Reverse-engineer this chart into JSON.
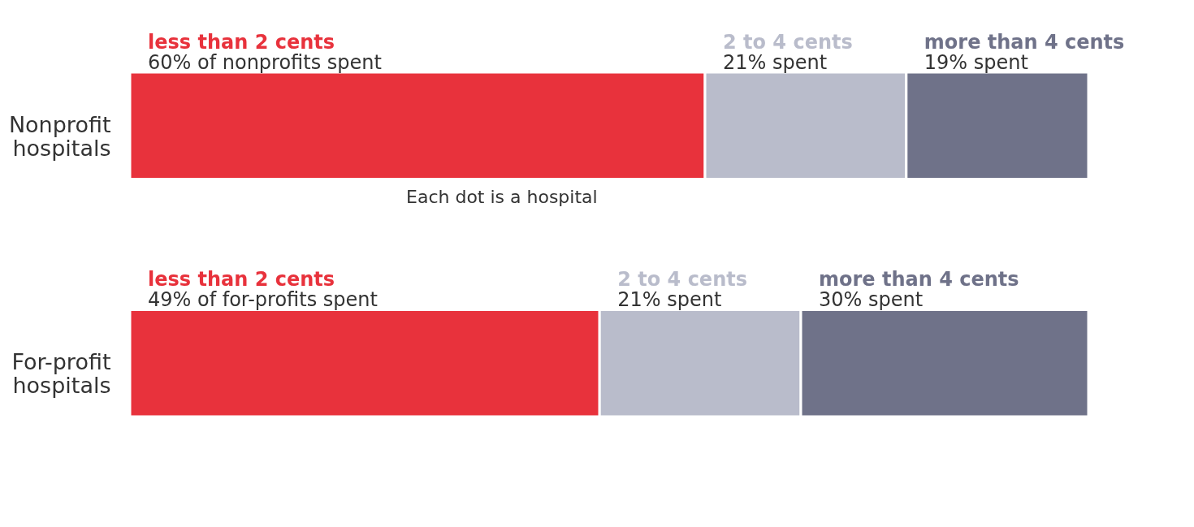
{
  "chart_data": {
    "type": "bar",
    "orientation": "horizontal",
    "stacked": true,
    "legend": false,
    "categories": [
      "Nonprofit hospitals",
      "For-profit hospitals"
    ],
    "series": [
      {
        "name": "less than 2 cents",
        "color": "#e8323c",
        "values": [
          60,
          49
        ],
        "value_labels": [
          "60% of nonprofits spent",
          "49% of for-profits spent"
        ]
      },
      {
        "name": "2 to 4 cents",
        "color": "#b9bccb",
        "values": [
          21,
          21
        ],
        "value_labels": [
          "21% spent",
          "21% spent"
        ]
      },
      {
        "name": "more than 4 cents",
        "color": "#6f7289",
        "values": [
          19,
          30
        ],
        "value_labels": [
          "19% spent",
          "30% spent"
        ]
      }
    ],
    "annotations": [
      "Each dot is a hospital"
    ]
  }
}
